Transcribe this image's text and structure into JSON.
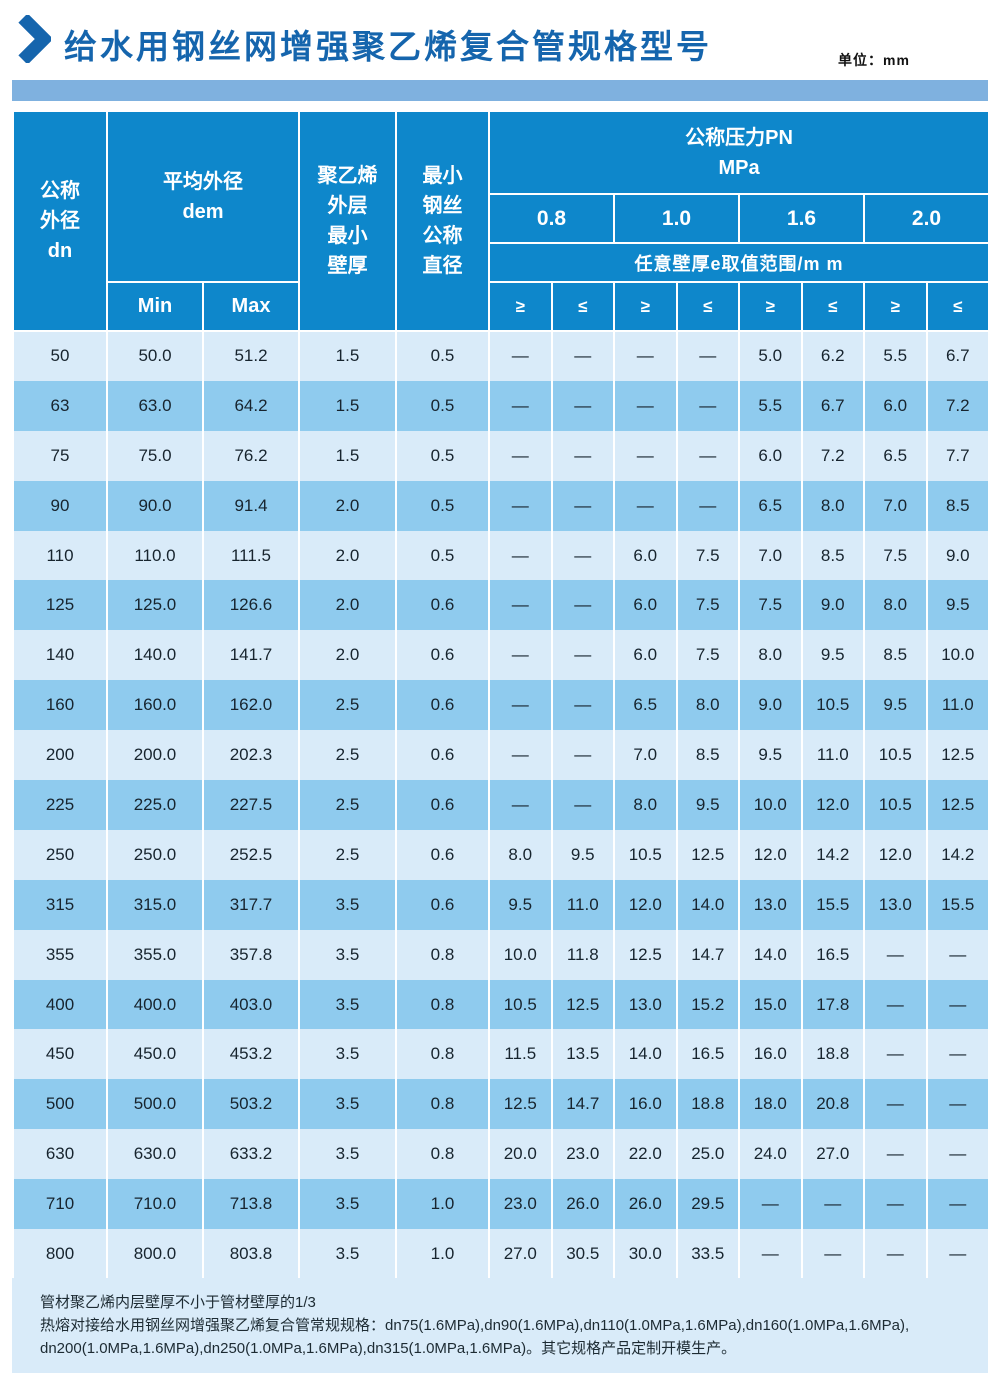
{
  "title": "给水用钢丝网增强聚乙烯复合管规格型号",
  "unit_label": "单位：mm",
  "colors": {
    "header_blue": "#0e87cb",
    "title_blue": "#1565ad",
    "banner_blue": "#7fb1df",
    "row_light": "#d9ebf9",
    "row_dark": "#8fcbee"
  },
  "table": {
    "header": {
      "dn": "公称\n外径\ndn",
      "dem": "平均外径\ndem",
      "min": "Min",
      "max": "Max",
      "pe_wall": "聚乙烯\n外层\n最小\n壁厚",
      "wire": "最小\n钢丝\n公称\n直径",
      "pn": "公称压力PN\nMPa",
      "pn_values": [
        "0.8",
        "1.0",
        "1.6",
        "2.0"
      ],
      "range_label": "任意壁厚e取值范围/m m",
      "ge": "≥",
      "le": "≤"
    },
    "rows": [
      [
        "50",
        "50.0",
        "51.2",
        "1.5",
        "0.5",
        "—",
        "—",
        "—",
        "—",
        "5.0",
        "6.2",
        "5.5",
        "6.7"
      ],
      [
        "63",
        "63.0",
        "64.2",
        "1.5",
        "0.5",
        "—",
        "—",
        "—",
        "—",
        "5.5",
        "6.7",
        "6.0",
        "7.2"
      ],
      [
        "75",
        "75.0",
        "76.2",
        "1.5",
        "0.5",
        "—",
        "—",
        "—",
        "—",
        "6.0",
        "7.2",
        "6.5",
        "7.7"
      ],
      [
        "90",
        "90.0",
        "91.4",
        "2.0",
        "0.5",
        "—",
        "—",
        "—",
        "—",
        "6.5",
        "8.0",
        "7.0",
        "8.5"
      ],
      [
        "110",
        "110.0",
        "111.5",
        "2.0",
        "0.5",
        "—",
        "—",
        "6.0",
        "7.5",
        "7.0",
        "8.5",
        "7.5",
        "9.0"
      ],
      [
        "125",
        "125.0",
        "126.6",
        "2.0",
        "0.6",
        "—",
        "—",
        "6.0",
        "7.5",
        "7.5",
        "9.0",
        "8.0",
        "9.5"
      ],
      [
        "140",
        "140.0",
        "141.7",
        "2.0",
        "0.6",
        "—",
        "—",
        "6.0",
        "7.5",
        "8.0",
        "9.5",
        "8.5",
        "10.0"
      ],
      [
        "160",
        "160.0",
        "162.0",
        "2.5",
        "0.6",
        "—",
        "—",
        "6.5",
        "8.0",
        "9.0",
        "10.5",
        "9.5",
        "11.0"
      ],
      [
        "200",
        "200.0",
        "202.3",
        "2.5",
        "0.6",
        "—",
        "—",
        "7.0",
        "8.5",
        "9.5",
        "11.0",
        "10.5",
        "12.5"
      ],
      [
        "225",
        "225.0",
        "227.5",
        "2.5",
        "0.6",
        "—",
        "—",
        "8.0",
        "9.5",
        "10.0",
        "12.0",
        "10.5",
        "12.5"
      ],
      [
        "250",
        "250.0",
        "252.5",
        "2.5",
        "0.6",
        "8.0",
        "9.5",
        "10.5",
        "12.5",
        "12.0",
        "14.2",
        "12.0",
        "14.2"
      ],
      [
        "315",
        "315.0",
        "317.7",
        "3.5",
        "0.6",
        "9.5",
        "11.0",
        "12.0",
        "14.0",
        "13.0",
        "15.5",
        "13.0",
        "15.5"
      ],
      [
        "355",
        "355.0",
        "357.8",
        "3.5",
        "0.8",
        "10.0",
        "11.8",
        "12.5",
        "14.7",
        "14.0",
        "16.5",
        "—",
        "—"
      ],
      [
        "400",
        "400.0",
        "403.0",
        "3.5",
        "0.8",
        "10.5",
        "12.5",
        "13.0",
        "15.2",
        "15.0",
        "17.8",
        "—",
        "—"
      ],
      [
        "450",
        "450.0",
        "453.2",
        "3.5",
        "0.8",
        "11.5",
        "13.5",
        "14.0",
        "16.5",
        "16.0",
        "18.8",
        "—",
        "—"
      ],
      [
        "500",
        "500.0",
        "503.2",
        "3.5",
        "0.8",
        "12.5",
        "14.7",
        "16.0",
        "18.8",
        "18.0",
        "20.8",
        "—",
        "—"
      ],
      [
        "630",
        "630.0",
        "633.2",
        "3.5",
        "0.8",
        "20.0",
        "23.0",
        "22.0",
        "25.0",
        "24.0",
        "27.0",
        "—",
        "—"
      ],
      [
        "710",
        "710.0",
        "713.8",
        "3.5",
        "1.0",
        "23.0",
        "26.0",
        "26.0",
        "29.5",
        "—",
        "—",
        "—",
        "—"
      ],
      [
        "800",
        "800.0",
        "803.8",
        "3.5",
        "1.0",
        "27.0",
        "30.5",
        "30.0",
        "33.5",
        "—",
        "—",
        "—",
        "—"
      ]
    ]
  },
  "footnotes": [
    "管材聚乙烯内层壁厚不小于管材壁厚的1/3",
    "热熔对接给水用钢丝网增强聚乙烯复合管常规规格：dn75(1.6MPa),dn90(1.6MPa),dn110(1.0MPa,1.6MPa),dn160(1.0MPa,1.6MPa),",
    "dn200(1.0MPa,1.6MPa),dn250(1.0MPa,1.6MPa),dn315(1.0MPa,1.6MPa)。其它规格产品定制开模生产。"
  ]
}
